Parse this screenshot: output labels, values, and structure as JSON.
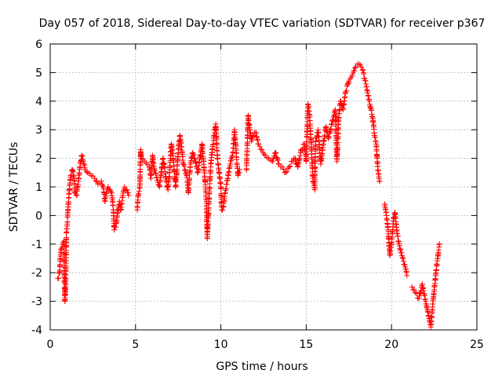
{
  "chart_data": {
    "type": "scatter",
    "title": "Day 057 of 2018, Sidereal Day-to-day VTEC variation (SDTVAR) for receiver p367",
    "xlabel": "GPS time / hours",
    "ylabel": "SDTVAR / TECUs",
    "xlim": [
      0,
      25
    ],
    "ylim": [
      -4,
      6
    ],
    "xticks": [
      0,
      5,
      10,
      15,
      20,
      25
    ],
    "yticks": [
      -4,
      -3,
      -2,
      -1,
      0,
      1,
      2,
      3,
      4,
      5,
      6
    ],
    "grid": true,
    "marker": "+",
    "marker_color": "#ff0000",
    "series": [
      {
        "name": "SDTVAR",
        "segments": [
          [
            [
              0.45,
              -2.2
            ],
            [
              0.55,
              -2.0
            ],
            [
              0.62,
              -1.2
            ],
            [
              0.7,
              -1.1
            ],
            [
              0.8,
              -0.9
            ],
            [
              0.86,
              -3.0
            ],
            [
              0.9,
              -2.6
            ],
            [
              0.95,
              -0.6
            ],
            [
              1.0,
              -0.3
            ],
            [
              1.05,
              0.3
            ],
            [
              1.12,
              0.9
            ],
            [
              1.2,
              1.4
            ],
            [
              1.3,
              1.6
            ],
            [
              1.4,
              1.3
            ],
            [
              1.45,
              0.8
            ],
            [
              1.55,
              0.7
            ],
            [
              1.65,
              1.2
            ],
            [
              1.75,
              1.7
            ],
            [
              1.85,
              2.1
            ],
            [
              1.95,
              1.9
            ],
            [
              2.05,
              1.6
            ],
            [
              2.2,
              1.5
            ],
            [
              2.4,
              1.4
            ],
            [
              2.6,
              1.3
            ],
            [
              2.8,
              1.1
            ],
            [
              3.0,
              1.2
            ],
            [
              3.1,
              1.0
            ],
            [
              3.2,
              0.5
            ],
            [
              3.3,
              0.8
            ],
            [
              3.4,
              1.0
            ],
            [
              3.5,
              0.9
            ],
            [
              3.6,
              0.8
            ],
            [
              3.7,
              0.2
            ],
            [
              3.75,
              -0.5
            ],
            [
              3.85,
              -0.4
            ],
            [
              3.95,
              0.1
            ],
            [
              4.05,
              0.5
            ],
            [
              4.15,
              0.2
            ],
            [
              4.25,
              0.7
            ],
            [
              4.35,
              1.0
            ],
            [
              4.5,
              0.9
            ],
            [
              4.6,
              0.7
            ]
          ],
          [
            [
              5.1,
              0.2
            ],
            [
              5.15,
              0.7
            ],
            [
              5.25,
              1.0
            ],
            [
              5.3,
              2.3
            ],
            [
              5.35,
              2.0
            ],
            [
              5.8,
              1.7
            ],
            [
              5.9,
              1.3
            ],
            [
              6.0,
              2.1
            ],
            [
              6.1,
              1.6
            ],
            [
              6.4,
              1.0
            ],
            [
              6.5,
              1.5
            ],
            [
              6.6,
              2.0
            ],
            [
              6.7,
              1.7
            ],
            [
              6.8,
              1.2
            ],
            [
              6.9,
              0.9
            ],
            [
              7.0,
              1.6
            ],
            [
              7.1,
              2.5
            ],
            [
              7.2,
              2.0
            ],
            [
              7.35,
              1.0
            ],
            [
              7.5,
              2.2
            ],
            [
              7.6,
              2.8
            ],
            [
              7.7,
              2.4
            ],
            [
              7.8,
              1.8
            ],
            [
              8.0,
              1.4
            ],
            [
              8.1,
              0.8
            ],
            [
              8.2,
              1.7
            ],
            [
              8.35,
              2.2
            ],
            [
              8.5,
              1.9
            ],
            [
              8.65,
              1.5
            ],
            [
              8.8,
              2.1
            ],
            [
              8.9,
              2.5
            ],
            [
              9.1,
              1.0
            ],
            [
              9.15,
              0.5
            ],
            [
              9.2,
              -0.8
            ],
            [
              9.4,
              1.7
            ],
            [
              9.5,
              2.3
            ],
            [
              9.6,
              2.8
            ],
            [
              9.7,
              3.2
            ],
            [
              9.8,
              2.0
            ],
            [
              9.9,
              1.5
            ],
            [
              10.0,
              1.0
            ],
            [
              10.05,
              0.2
            ],
            [
              10.15,
              0.3
            ],
            [
              10.25,
              0.8
            ],
            [
              10.35,
              1.1
            ],
            [
              10.45,
              1.5
            ],
            [
              10.55,
              1.8
            ],
            [
              10.7,
              2.2
            ],
            [
              10.8,
              3.0
            ],
            [
              10.9,
              2.2
            ],
            [
              11.0,
              1.4
            ],
            [
              11.1,
              1.6
            ]
          ],
          [
            [
              11.5,
              1.6
            ],
            [
              11.6,
              3.5
            ],
            [
              11.7,
              3.0
            ],
            [
              11.8,
              2.6
            ],
            [
              11.9,
              2.8
            ],
            [
              12.05,
              2.9
            ],
            [
              12.2,
              2.5
            ],
            [
              12.4,
              2.3
            ],
            [
              12.6,
              2.1
            ],
            [
              12.8,
              2.0
            ],
            [
              13.0,
              1.9
            ],
            [
              13.2,
              2.2
            ],
            [
              13.4,
              1.8
            ],
            [
              13.6,
              1.7
            ],
            [
              13.8,
              1.5
            ],
            [
              14.0,
              1.7
            ],
            [
              14.2,
              1.9
            ],
            [
              14.35,
              2.0
            ],
            [
              14.5,
              1.7
            ],
            [
              14.7,
              2.3
            ],
            [
              14.9,
              2.5
            ],
            [
              15.0,
              1.9
            ],
            [
              15.1,
              3.9
            ],
            [
              15.2,
              3.5
            ],
            [
              15.3,
              2.4
            ],
            [
              15.4,
              1.2
            ],
            [
              15.5,
              0.9
            ],
            [
              15.55,
              2.6
            ],
            [
              15.7,
              3.0
            ],
            [
              15.85,
              1.8
            ],
            [
              16.0,
              2.5
            ],
            [
              16.15,
              3.1
            ],
            [
              16.3,
              2.7
            ],
            [
              16.5,
              3.2
            ],
            [
              16.7,
              3.7
            ],
            [
              16.8,
              1.9
            ],
            [
              16.9,
              3.4
            ],
            [
              17.0,
              4.0
            ],
            [
              17.15,
              3.7
            ],
            [
              17.3,
              4.3
            ],
            [
              17.5,
              4.7
            ],
            [
              17.7,
              4.9
            ],
            [
              17.9,
              5.2
            ],
            [
              18.1,
              5.3
            ],
            [
              18.3,
              5.1
            ],
            [
              18.5,
              4.6
            ],
            [
              18.7,
              4.0
            ],
            [
              18.9,
              3.4
            ],
            [
              19.0,
              2.8
            ],
            [
              19.1,
              2.5
            ],
            [
              19.2,
              1.6
            ],
            [
              19.3,
              1.2
            ]
          ],
          [
            [
              19.6,
              0.4
            ],
            [
              19.7,
              0.0
            ],
            [
              19.8,
              -0.5
            ],
            [
              19.9,
              -1.4
            ],
            [
              20.0,
              -1.0
            ],
            [
              20.1,
              -0.2
            ],
            [
              20.2,
              0.1
            ],
            [
              20.3,
              -0.5
            ],
            [
              20.4,
              -0.9
            ],
            [
              20.55,
              -1.3
            ],
            [
              20.7,
              -1.6
            ],
            [
              20.8,
              -1.8
            ],
            [
              20.9,
              -2.1
            ]
          ],
          [
            [
              21.2,
              -2.5
            ],
            [
              21.4,
              -2.7
            ],
            [
              21.6,
              -2.9
            ],
            [
              21.8,
              -2.4
            ],
            [
              22.0,
              -3.0
            ],
            [
              22.1,
              -3.3
            ],
            [
              22.2,
              -3.6
            ],
            [
              22.3,
              -3.9
            ],
            [
              22.4,
              -3.2
            ],
            [
              22.5,
              -2.6
            ],
            [
              22.6,
              -2.0
            ],
            [
              22.7,
              -1.5
            ],
            [
              22.8,
              -1.0
            ]
          ]
        ]
      }
    ]
  }
}
